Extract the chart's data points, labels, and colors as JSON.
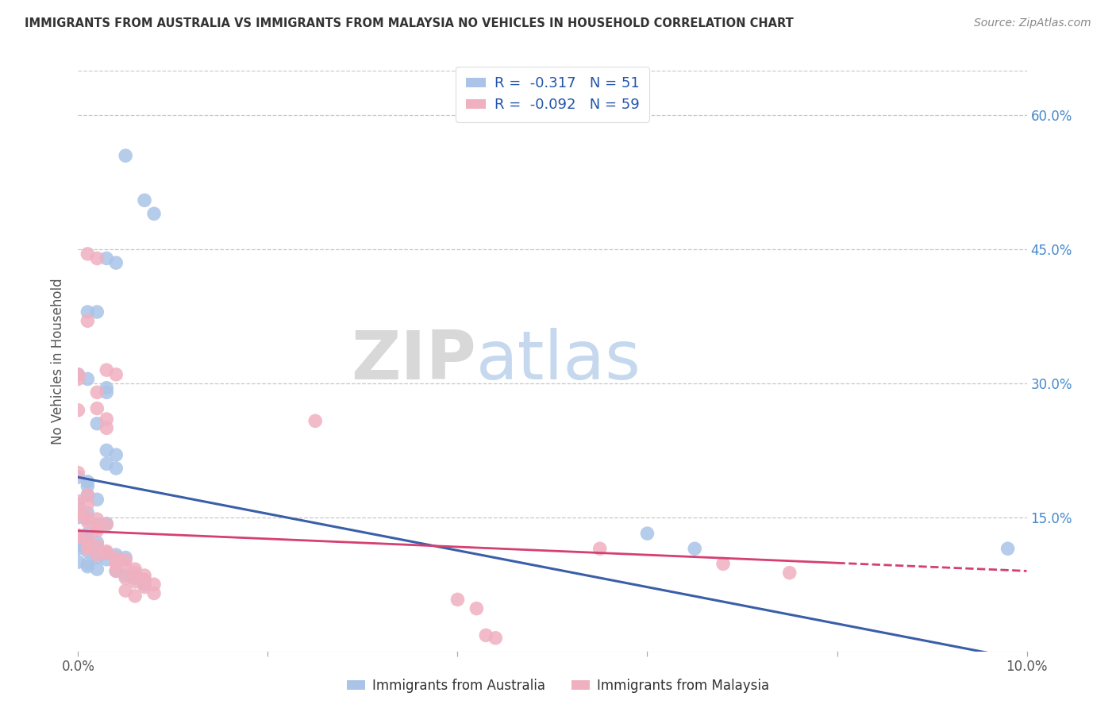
{
  "title": "IMMIGRANTS FROM AUSTRALIA VS IMMIGRANTS FROM MALAYSIA NO VEHICLES IN HOUSEHOLD CORRELATION CHART",
  "source": "Source: ZipAtlas.com",
  "ylabel": "No Vehicles in Household",
  "xlim": [
    0.0,
    0.1
  ],
  "ylim": [
    0.0,
    0.65
  ],
  "yticks": [
    0.0,
    0.15,
    0.3,
    0.45,
    0.6
  ],
  "xticks": [
    0.0,
    0.02,
    0.04,
    0.06,
    0.08,
    0.1
  ],
  "series_australia": {
    "label": "Immigrants from Australia",
    "color": "#aac4e8",
    "R": -0.317,
    "N": 51,
    "line_color": "#3a5fa8",
    "line_x0": 0.0,
    "line_y0": 0.195,
    "line_x1": 0.1,
    "line_y1": -0.01,
    "points": [
      [
        0.005,
        0.555
      ],
      [
        0.007,
        0.505
      ],
      [
        0.008,
        0.49
      ],
      [
        0.001,
        0.38
      ],
      [
        0.003,
        0.44
      ],
      [
        0.004,
        0.435
      ],
      [
        0.002,
        0.38
      ],
      [
        0.001,
        0.305
      ],
      [
        0.0,
        0.31
      ],
      [
        0.003,
        0.295
      ],
      [
        0.003,
        0.29
      ],
      [
        0.002,
        0.255
      ],
      [
        0.003,
        0.225
      ],
      [
        0.004,
        0.22
      ],
      [
        0.001,
        0.185
      ],
      [
        0.003,
        0.21
      ],
      [
        0.004,
        0.205
      ],
      [
        0.0,
        0.195
      ],
      [
        0.001,
        0.19
      ],
      [
        0.001,
        0.175
      ],
      [
        0.002,
        0.17
      ],
      [
        0.0,
        0.165
      ],
      [
        0.001,
        0.155
      ],
      [
        0.0,
        0.15
      ],
      [
        0.001,
        0.148
      ],
      [
        0.003,
        0.143
      ],
      [
        0.002,
        0.142
      ],
      [
        0.001,
        0.132
      ],
      [
        0.0,
        0.128
      ],
      [
        0.001,
        0.125
      ],
      [
        0.002,
        0.122
      ],
      [
        0.0,
        0.118
      ],
      [
        0.0,
        0.115
      ],
      [
        0.001,
        0.112
      ],
      [
        0.003,
        0.11
      ],
      [
        0.004,
        0.108
      ],
      [
        0.002,
        0.105
      ],
      [
        0.005,
        0.105
      ],
      [
        0.003,
        0.103
      ],
      [
        0.0,
        0.1
      ],
      [
        0.001,
        0.098
      ],
      [
        0.001,
        0.095
      ],
      [
        0.002,
        0.092
      ],
      [
        0.004,
        0.09
      ],
      [
        0.005,
        0.085
      ],
      [
        0.006,
        0.082
      ],
      [
        0.007,
        0.08
      ],
      [
        0.007,
        0.075
      ],
      [
        0.06,
        0.132
      ],
      [
        0.065,
        0.115
      ],
      [
        0.098,
        0.115
      ]
    ]
  },
  "series_malaysia": {
    "label": "Immigrants from Malaysia",
    "color": "#f0b0c0",
    "R": -0.092,
    "N": 59,
    "line_color": "#d44070",
    "line_x0": 0.0,
    "line_y0": 0.135,
    "line_x1": 0.1,
    "line_y1": 0.09,
    "points": [
      [
        0.0,
        0.305
      ],
      [
        0.001,
        0.445
      ],
      [
        0.002,
        0.44
      ],
      [
        0.001,
        0.37
      ],
      [
        0.0,
        0.31
      ],
      [
        0.0,
        0.27
      ],
      [
        0.003,
        0.315
      ],
      [
        0.004,
        0.31
      ],
      [
        0.002,
        0.29
      ],
      [
        0.003,
        0.26
      ],
      [
        0.025,
        0.258
      ],
      [
        0.002,
        0.272
      ],
      [
        0.003,
        0.25
      ],
      [
        0.0,
        0.2
      ],
      [
        0.001,
        0.175
      ],
      [
        0.0,
        0.168
      ],
      [
        0.001,
        0.165
      ],
      [
        0.0,
        0.158
      ],
      [
        0.0,
        0.155
      ],
      [
        0.0,
        0.152
      ],
      [
        0.001,
        0.15
      ],
      [
        0.002,
        0.148
      ],
      [
        0.001,
        0.145
      ],
      [
        0.003,
        0.142
      ],
      [
        0.002,
        0.138
      ],
      [
        0.002,
        0.135
      ],
      [
        0.0,
        0.13
      ],
      [
        0.0,
        0.128
      ],
      [
        0.001,
        0.125
      ],
      [
        0.001,
        0.12
      ],
      [
        0.002,
        0.118
      ],
      [
        0.001,
        0.115
      ],
      [
        0.003,
        0.112
      ],
      [
        0.003,
        0.11
      ],
      [
        0.002,
        0.108
      ],
      [
        0.004,
        0.105
      ],
      [
        0.005,
        0.102
      ],
      [
        0.004,
        0.1
      ],
      [
        0.004,
        0.098
      ],
      [
        0.005,
        0.095
      ],
      [
        0.006,
        0.092
      ],
      [
        0.004,
        0.09
      ],
      [
        0.006,
        0.088
      ],
      [
        0.007,
        0.085
      ],
      [
        0.005,
        0.082
      ],
      [
        0.007,
        0.08
      ],
      [
        0.006,
        0.078
      ],
      [
        0.008,
        0.075
      ],
      [
        0.007,
        0.072
      ],
      [
        0.005,
        0.068
      ],
      [
        0.008,
        0.065
      ],
      [
        0.006,
        0.062
      ],
      [
        0.04,
        0.058
      ],
      [
        0.042,
        0.048
      ],
      [
        0.043,
        0.018
      ],
      [
        0.044,
        0.015
      ],
      [
        0.055,
        0.115
      ],
      [
        0.068,
        0.098
      ],
      [
        0.075,
        0.088
      ]
    ]
  },
  "watermark_zip": "ZIP",
  "watermark_atlas": "atlas",
  "background_color": "#ffffff",
  "grid_color": "#c8c8c8",
  "title_color": "#333333",
  "axis_label_color": "#555555",
  "right_axis_color": "#4488cc",
  "tick_label_color": "#555555"
}
